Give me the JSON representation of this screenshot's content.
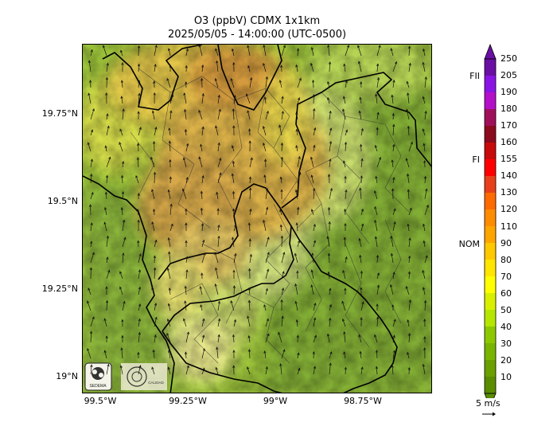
{
  "title": {
    "line1": "O3 (ppbV) CDMX 1x1km",
    "line2": "2025/05/05 - 14:00:00 (UTC-0500)"
  },
  "axes": {
    "lat_ticks": [
      "19.75°N",
      "19.5°N",
      "19.25°N",
      "19°N"
    ],
    "lon_ticks": [
      "99.5°W",
      "99.25°W",
      "99°W",
      "98.75°W"
    ]
  },
  "colorbar": {
    "ticks": [
      "250",
      "205",
      "190",
      "180",
      "170",
      "160",
      "155",
      "140",
      "130",
      "120",
      "110",
      "90",
      "80",
      "70",
      "60",
      "50",
      "40",
      "30",
      "20",
      "10"
    ],
    "levels": [
      {
        "value": 250,
        "color": "#6a0fa3"
      },
      {
        "value": 205,
        "color": "#8a14e6"
      },
      {
        "value": 190,
        "color": "#b40fc8"
      },
      {
        "value": 180,
        "color": "#a0105a"
      },
      {
        "value": 170,
        "color": "#8c0a1e"
      },
      {
        "value": 160,
        "color": "#c80a0a"
      },
      {
        "value": 155,
        "color": "#ff0000"
      },
      {
        "value": 140,
        "color": "#e8401a"
      },
      {
        "value": 130,
        "color": "#ff6a00"
      },
      {
        "value": 120,
        "color": "#ff8c00"
      },
      {
        "value": 110,
        "color": "#ffa500"
      },
      {
        "value": 90,
        "color": "#ffc800"
      },
      {
        "value": 80,
        "color": "#ffe600"
      },
      {
        "value": 70,
        "color": "#ffff00"
      },
      {
        "value": 60,
        "color": "#d8f000"
      },
      {
        "value": 50,
        "color": "#b4e600"
      },
      {
        "value": 40,
        "color": "#8cc800"
      },
      {
        "value": 30,
        "color": "#78b400"
      },
      {
        "value": 20,
        "color": "#6aa000"
      },
      {
        "value": 10,
        "color": "#5a8c00"
      }
    ],
    "side_labels": [
      "FII",
      "FI",
      "NOM"
    ]
  },
  "wind": {
    "reference_label": "5 m/s"
  },
  "logos": [
    "SEDEMA",
    "Calidad del Aire"
  ]
}
